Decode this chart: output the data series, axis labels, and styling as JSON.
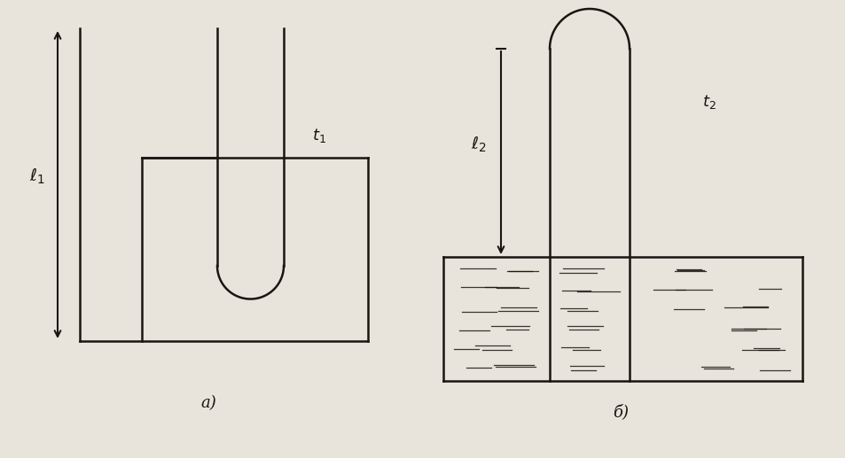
{
  "bg_color": "#e8e4dc",
  "line_color": "#1a1510",
  "fig_width": 9.54,
  "fig_height": 5.17,
  "label_a": "a)",
  "label_b": "б)",
  "label_t1": "$t_1$",
  "label_t2": "$t_2$",
  "label_e1": "$\\ell_1$",
  "label_e2": "$\\ell_2$"
}
